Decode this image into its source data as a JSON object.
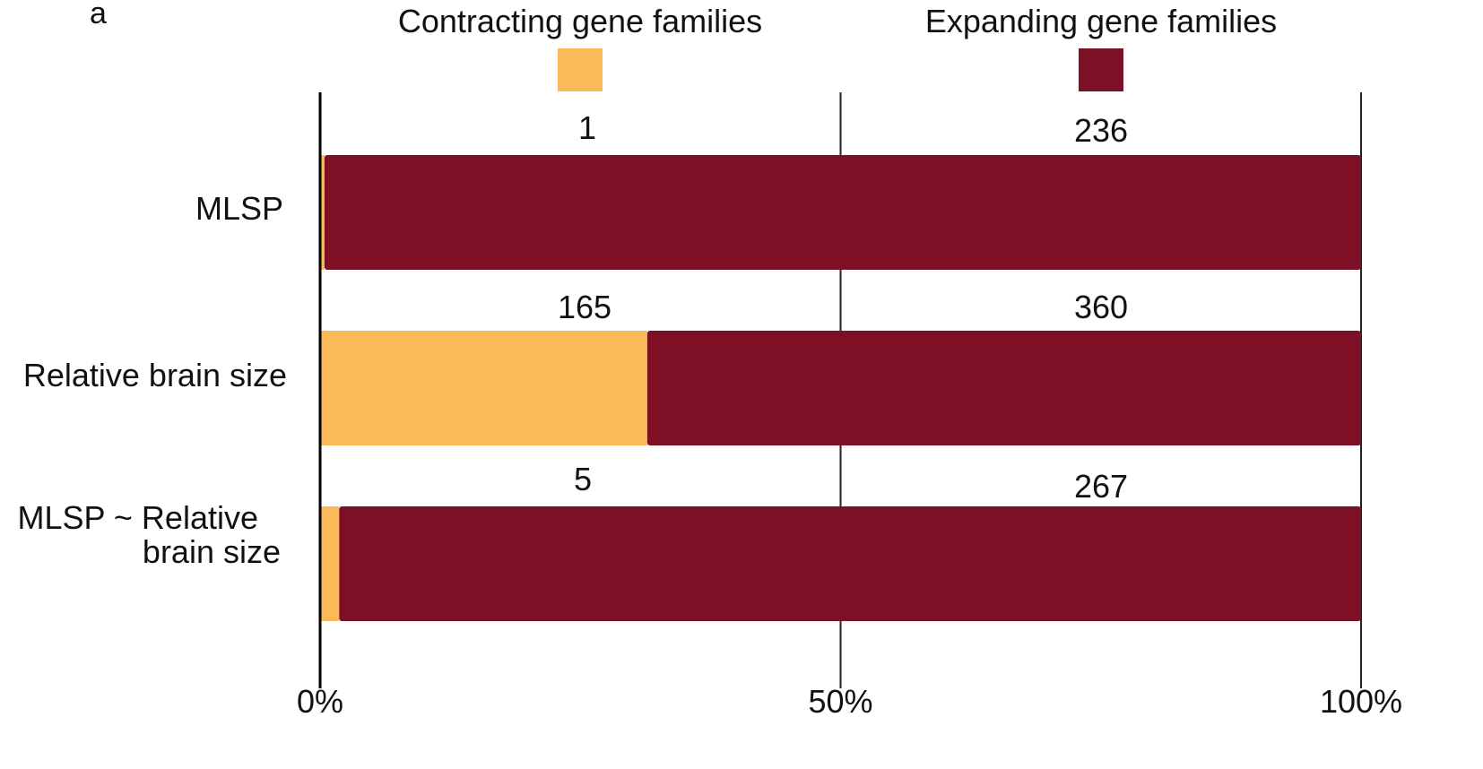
{
  "panel_label": "a",
  "legend": [
    {
      "label": "Contracting gene families",
      "color": "#FBBA5A"
    },
    {
      "label": "Expanding gene families",
      "color": "#7E1026"
    }
  ],
  "chart_data": {
    "type": "bar",
    "orientation": "horizontal",
    "stacked": true,
    "normalized": true,
    "categories": [
      [
        "MLSP"
      ],
      [
        "Relative brain size"
      ],
      [
        "MLSP ~ Relative",
        "brain size"
      ]
    ],
    "series": [
      {
        "name": "Contracting gene families",
        "values": [
          1,
          165,
          5
        ],
        "color": "#FBBA5A"
      },
      {
        "name": "Expanding gene families",
        "values": [
          236,
          360,
          267
        ],
        "color": "#7E1026"
      }
    ],
    "data_labels": [
      [
        "1",
        "236"
      ],
      [
        "165",
        "360"
      ],
      [
        "5",
        "267"
      ]
    ],
    "xlim": [
      0,
      100
    ],
    "xticks": [
      0,
      50,
      100
    ],
    "xtick_labels": [
      "0%",
      "50%",
      "100%"
    ],
    "grid": true,
    "legend_position": "top"
  }
}
